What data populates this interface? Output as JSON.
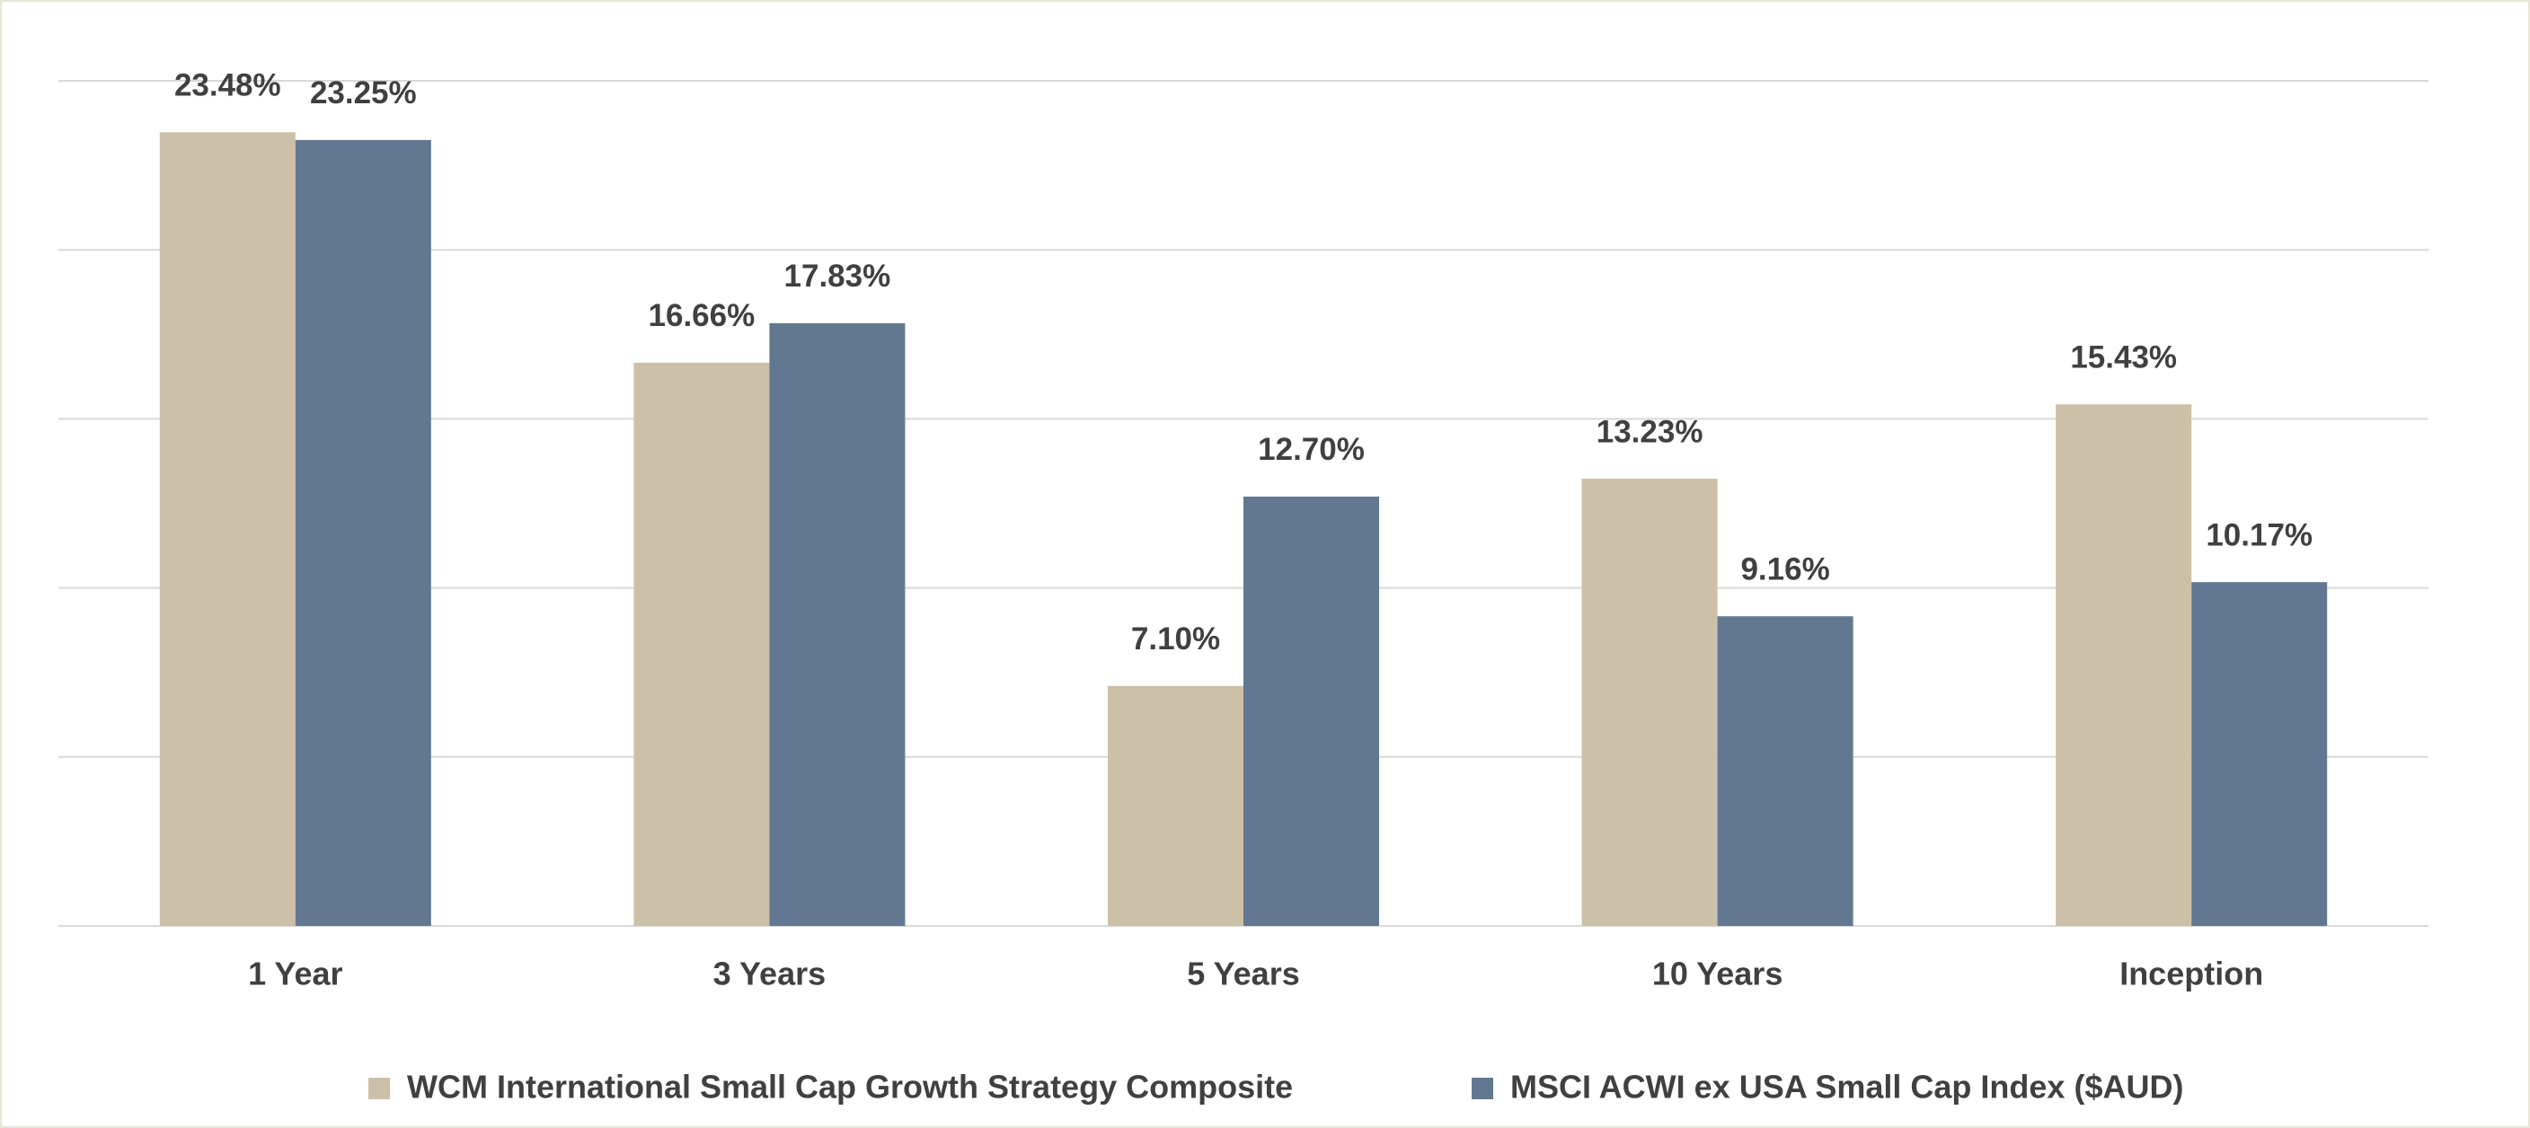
{
  "chart_data": {
    "type": "bar",
    "categories": [
      "1 Year",
      "3 Years",
      "5 Years",
      "10 Years",
      "Inception"
    ],
    "series": [
      {
        "name": "WCM International Small Cap Growth Strategy Composite",
        "color": "#cdc0a8",
        "values": [
          23.48,
          16.66,
          7.1,
          13.23,
          15.43
        ],
        "value_labels": [
          "23.48%",
          "16.66%",
          "7.10%",
          "13.23%",
          "15.43%"
        ]
      },
      {
        "name": "MSCI ACWI ex USA Small Cap Index ($AUD)",
        "color": "#627891",
        "values": [
          23.25,
          17.83,
          12.7,
          9.16,
          10.17
        ],
        "value_labels": [
          "23.25%",
          "17.83%",
          "12.70%",
          "9.16%",
          "10.17%"
        ]
      }
    ],
    "ylim": [
      0,
      25
    ],
    "yticks": [
      0,
      5,
      10,
      15,
      20,
      25
    ],
    "grid": true,
    "legend": "bottom"
  }
}
